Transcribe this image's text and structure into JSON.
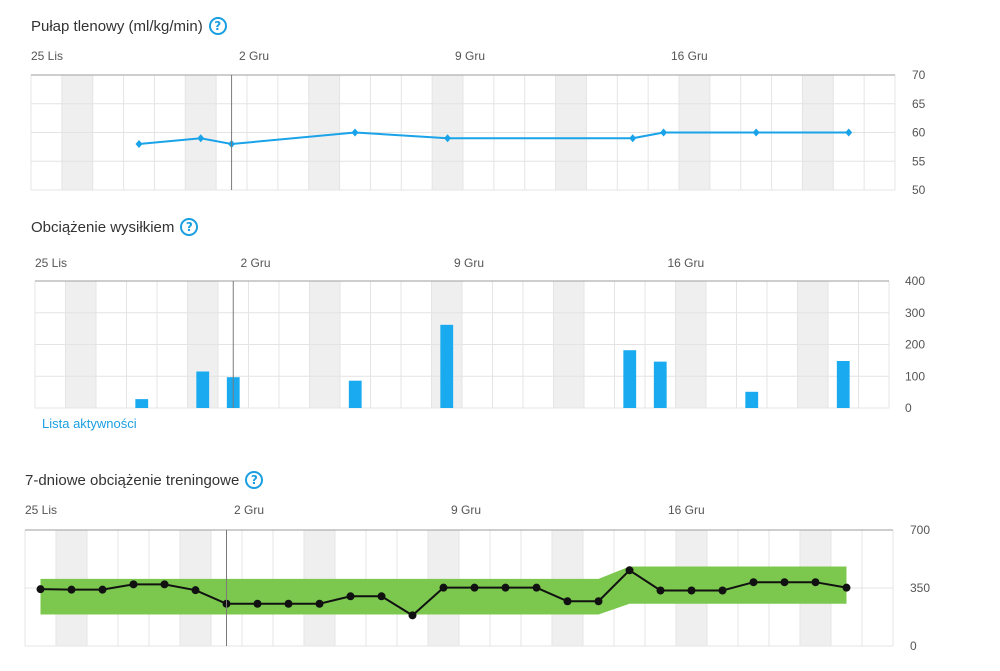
{
  "vo2max": {
    "title": "Pułap tlenowy (ml/kg/min)",
    "help_icon": "question-circle-icon"
  },
  "exercise_load": {
    "title": "Obciążenie wysiłkiem",
    "help_icon": "question-circle-icon",
    "activity_list_label": "Lista aktywności"
  },
  "training_load": {
    "title": "7-dniowe obciążenie treningowe",
    "help_icon": "question-circle-icon"
  },
  "colors": {
    "accent": "#1a9fe0",
    "line_blue": "#1aa3e8",
    "bar_blue": "#19aaf0",
    "green_band": "#7cc84e",
    "black_line": "#111111",
    "shade": "#efefef",
    "grid": "#e4e4e4"
  },
  "chart_data": [
    {
      "type": "line",
      "title": "Pułap tlenowy (ml/kg/min)",
      "date_labels": [
        "25 Lis",
        "2 Gru",
        "9 Gru",
        "16 Gru"
      ],
      "yticks": [
        70,
        65,
        60,
        55,
        50
      ],
      "ylim": [
        50,
        70
      ],
      "x_range": [
        0,
        28
      ],
      "x": [
        3.5,
        5.5,
        6.5,
        10.5,
        13.5,
        19.5,
        20.5,
        23.5,
        26.5
      ],
      "values": [
        58,
        59,
        58,
        60,
        59,
        59,
        60,
        60,
        60
      ],
      "series": [
        {
          "values": [
            58,
            59,
            58,
            60,
            59,
            59,
            60,
            60,
            60
          ]
        }
      ]
    },
    {
      "type": "bar",
      "title": "Obciążenie wysiłkiem",
      "date_labels": [
        "25 Lis",
        "2 Gru",
        "9 Gru",
        "16 Gru"
      ],
      "yticks": [
        400,
        300,
        200,
        100,
        0
      ],
      "ylim": [
        0,
        400
      ],
      "x_range": [
        0,
        28
      ],
      "x": [
        3.5,
        5.5,
        6.5,
        10.5,
        13.5,
        19.5,
        20.5,
        23.5,
        26.5
      ],
      "values": [
        28,
        115,
        97,
        86,
        262,
        182,
        146,
        51,
        148
      ],
      "series": [
        {
          "values": [
            28,
            115,
            97,
            86,
            262,
            182,
            146,
            51,
            148
          ]
        }
      ]
    },
    {
      "type": "line",
      "title": "7-dniowe obciążenie treningowe",
      "date_labels": [
        "25 Lis",
        "2 Gru",
        "9 Gru",
        "16 Gru"
      ],
      "yticks": [
        700,
        350,
        0
      ],
      "ylim": [
        0,
        700
      ],
      "x_range": [
        0,
        28
      ],
      "x": [
        0.5,
        1.5,
        2.5,
        3.5,
        4.5,
        5.5,
        6.5,
        7.5,
        8.5,
        9.5,
        10.5,
        11.5,
        12.5,
        13.5,
        14.5,
        15.5,
        16.5,
        17.5,
        18.5,
        19.5,
        20.5,
        21.5,
        22.5,
        23.5,
        24.5,
        25.5,
        26.5
      ],
      "values": [
        343,
        340,
        340,
        372,
        372,
        337,
        255,
        255,
        255,
        255,
        300,
        300,
        185,
        352,
        352,
        352,
        352,
        270,
        270,
        457,
        335,
        335,
        335,
        385,
        385,
        385,
        352
      ],
      "band": {
        "x": [
          0.5,
          18.5,
          19.5,
          26.5
        ],
        "upper": [
          405,
          405,
          480,
          480
        ],
        "lower": [
          190,
          190,
          255,
          255
        ]
      },
      "series": [
        {
          "values": [
            343,
            340,
            340,
            372,
            372,
            337,
            255,
            255,
            255,
            255,
            300,
            300,
            185,
            352,
            352,
            352,
            352,
            270,
            270,
            457,
            335,
            335,
            335,
            385,
            385,
            385,
            352
          ]
        }
      ]
    }
  ]
}
